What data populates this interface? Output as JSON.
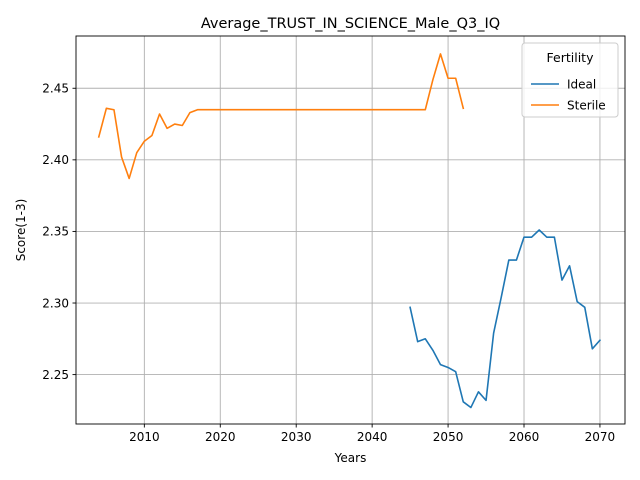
{
  "chart_data": {
    "type": "line",
    "title": "Average_TRUST_IN_SCIENCE_Male_Q3_IQ",
    "xlabel": "Years",
    "ylabel": "Score(1-3)",
    "xlim": [
      2001,
      2073.3
    ],
    "ylim": [
      2.2155,
      2.4865
    ],
    "xticks": [
      2010,
      2020,
      2030,
      2040,
      2050,
      2060,
      2070
    ],
    "yticks": [
      2.25,
      2.3,
      2.35,
      2.4,
      2.45
    ],
    "ytick_labels": [
      "2.25",
      "2.30",
      "2.35",
      "2.40",
      "2.45"
    ],
    "grid": true,
    "legend": {
      "title": "Fertility",
      "placement": "top-right"
    },
    "series": [
      {
        "name": "Ideal",
        "color": "#1f77b4",
        "x": [
          2045,
          2046,
          2047,
          2048,
          2049,
          2050,
          2051,
          2052,
          2053,
          2054,
          2055,
          2056,
          2057,
          2058,
          2059,
          2060,
          2061,
          2062,
          2063,
          2064,
          2065,
          2066,
          2067,
          2068,
          2069,
          2070
        ],
        "y": [
          2.297,
          2.273,
          2.275,
          2.267,
          2.257,
          2.255,
          2.252,
          2.231,
          2.227,
          2.238,
          2.232,
          2.279,
          2.304,
          2.33,
          2.33,
          2.346,
          2.346,
          2.351,
          2.346,
          2.346,
          2.316,
          2.326,
          2.301,
          2.297,
          2.268,
          2.274
        ]
      },
      {
        "name": "Sterile",
        "color": "#ff7f0e",
        "x": [
          2004,
          2005,
          2006,
          2007,
          2008,
          2009,
          2010,
          2011,
          2012,
          2013,
          2014,
          2015,
          2016,
          2017,
          2018,
          2019,
          2020,
          2025,
          2030,
          2035,
          2040,
          2045,
          2046,
          2047,
          2048,
          2049,
          2050,
          2051,
          2052
        ],
        "y": [
          2.416,
          2.436,
          2.435,
          2.402,
          2.387,
          2.405,
          2.413,
          2.417,
          2.432,
          2.422,
          2.425,
          2.424,
          2.433,
          2.435,
          2.435,
          2.435,
          2.435,
          2.435,
          2.435,
          2.435,
          2.435,
          2.435,
          2.435,
          2.435,
          2.456,
          2.474,
          2.457,
          2.457,
          2.436
        ]
      }
    ]
  }
}
